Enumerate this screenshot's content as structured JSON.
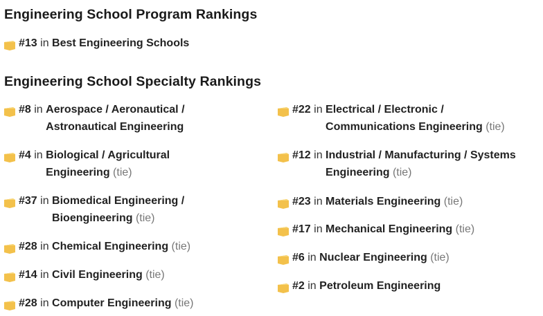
{
  "program": {
    "heading": "Engineering School Program Rankings",
    "item": {
      "rank": "#13",
      "in": " in ",
      "name": "Best Engineering Schools",
      "tie": ""
    }
  },
  "specialty": {
    "heading": "Engineering School Specialty Rankings",
    "left": [
      {
        "rank": "#8",
        "in": " in ",
        "name": "Aerospace / Aeronautical / Astronautical Engineering",
        "tie": ""
      },
      {
        "rank": "#4",
        "in": " in ",
        "name": "Biological / Agricultural Engineering",
        "tie": "(tie)"
      },
      {
        "rank": "#37",
        "in": " in ",
        "name": "Biomedical Engineering / Bioengineering",
        "tie": "(tie)"
      },
      {
        "rank": "#28",
        "in": " in ",
        "name": "Chemical Engineering",
        "tie": "(tie)"
      },
      {
        "rank": "#14",
        "in": " in ",
        "name": "Civil Engineering",
        "tie": "(tie)"
      },
      {
        "rank": "#28",
        "in": " in ",
        "name": "Computer Engineering",
        "tie": "(tie)"
      }
    ],
    "right": [
      {
        "rank": "#22",
        "in": " in ",
        "name": "Electrical / Electronic / Communications Engineering",
        "tie": "(tie)"
      },
      {
        "rank": "#12",
        "in": " in ",
        "name": "Industrial / Manufacturing / Systems Engineering",
        "tie": "(tie)"
      },
      {
        "rank": "#23",
        "in": " in ",
        "name": "Materials Engineering",
        "tie": "(tie)"
      },
      {
        "rank": "#17",
        "in": " in ",
        "name": "Mechanical Engineering",
        "tie": "(tie)"
      },
      {
        "rank": "#6",
        "in": " in ",
        "name": "Nuclear Engineering",
        "tie": "(tie)"
      },
      {
        "rank": "#2",
        "in": " in ",
        "name": "Petroleum Engineering",
        "tie": ""
      }
    ]
  },
  "icon": {
    "name": "ranking-badge-icon",
    "color": "#f3c14b"
  }
}
